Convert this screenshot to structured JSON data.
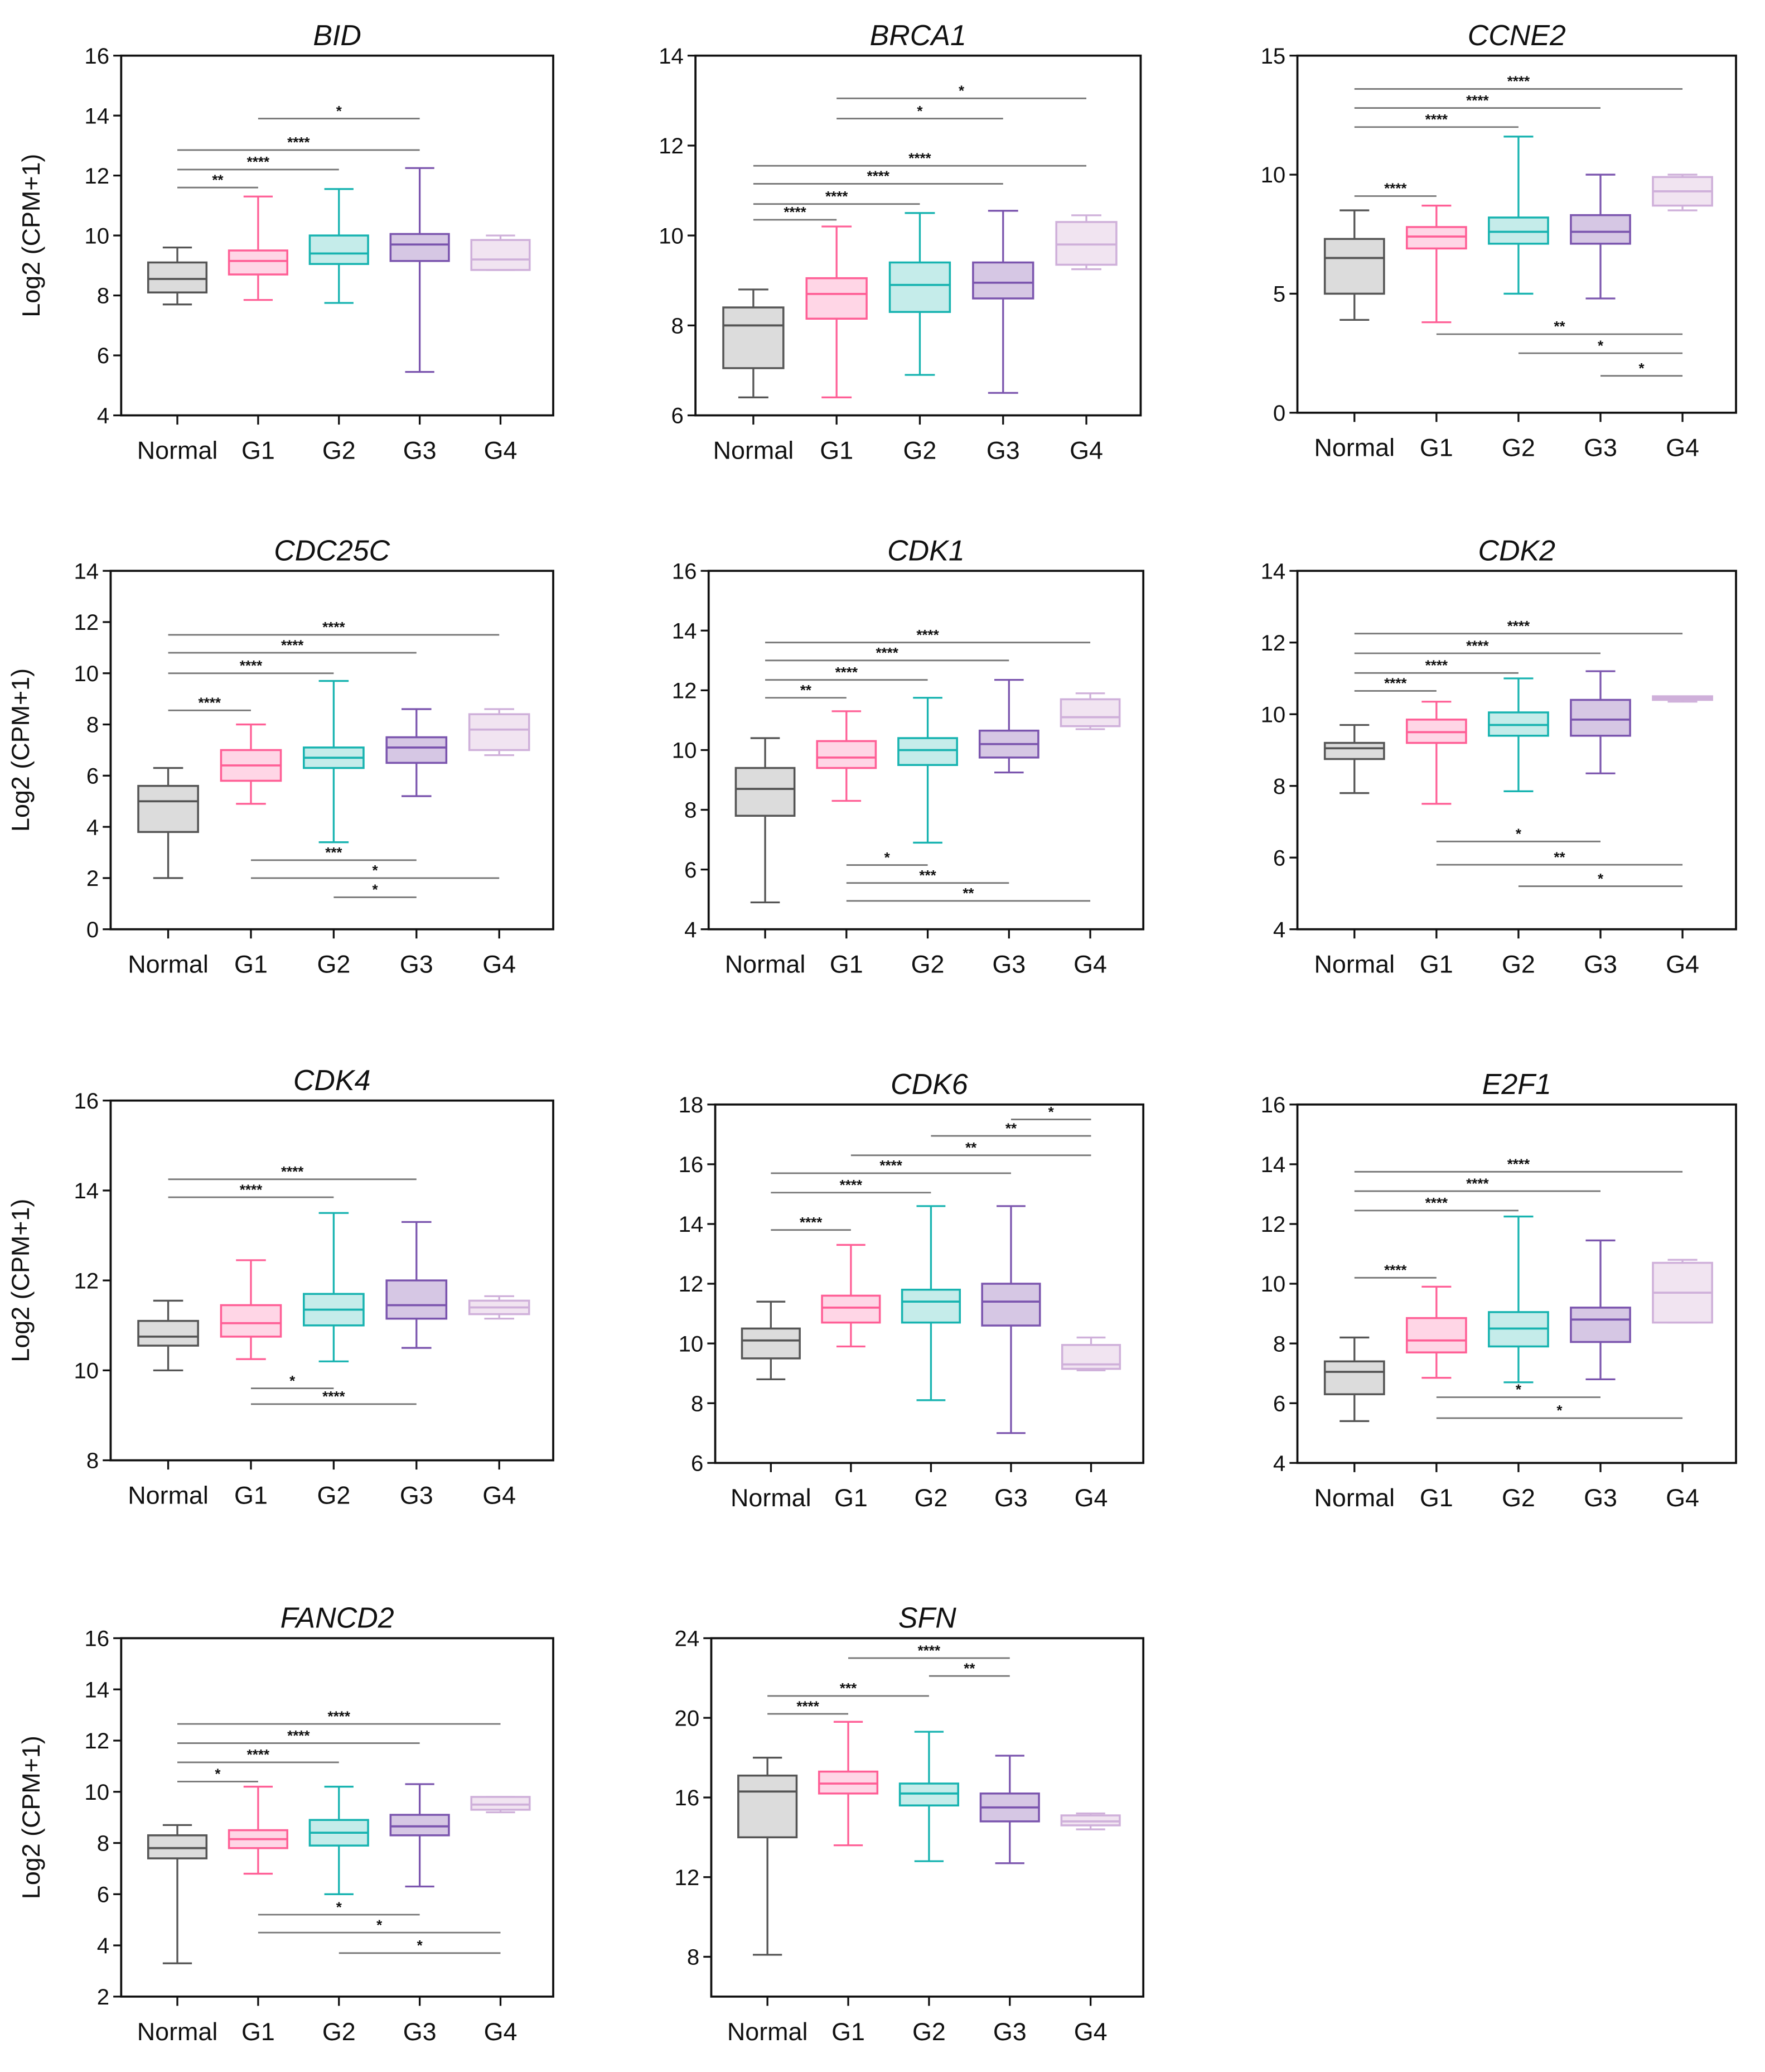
{
  "colors": {
    "Normal": {
      "stroke": "#555555",
      "fill": "#dcdcdc"
    },
    "G1": {
      "stroke": "#ff5f96",
      "fill": "#ffd6e6"
    },
    "G2": {
      "stroke": "#17b3b0",
      "fill": "#c5ecea"
    },
    "G3": {
      "stroke": "#7b55ae",
      "fill": "#d6c7e4"
    },
    "G4": {
      "stroke": "#cfb0da",
      "fill": "#f1e4f1"
    }
  },
  "chart_data": [
    {
      "type": "box",
      "title": "BID",
      "ylabel": "Log2 (CPM+1)",
      "ylim": [
        4,
        16
      ],
      "yticks": [
        4,
        6,
        8,
        10,
        12,
        14,
        16
      ],
      "categories": [
        "Normal",
        "G1",
        "G2",
        "G3",
        "G4"
      ],
      "boxes": [
        [
          7.7,
          8.1,
          8.55,
          9.1,
          9.6
        ],
        [
          7.85,
          8.7,
          9.15,
          9.5,
          11.3
        ],
        [
          7.75,
          9.05,
          9.4,
          10.0,
          11.55
        ],
        [
          5.45,
          9.15,
          9.7,
          10.05,
          12.25
        ],
        [
          8.85,
          8.85,
          9.2,
          9.85,
          10.0
        ]
      ],
      "significance": [
        {
          "from": "Normal",
          "to": "G1",
          "label": "**",
          "y": 11.6
        },
        {
          "from": "Normal",
          "to": "G2",
          "label": "****",
          "y": 12.2
        },
        {
          "from": "Normal",
          "to": "G3",
          "label": "****",
          "y": 12.85
        },
        {
          "from": "G1",
          "to": "G3",
          "label": "*",
          "y": 13.9
        }
      ]
    },
    {
      "type": "box",
      "title": "BRCA1",
      "ylabel": "",
      "ylim": [
        6,
        14
      ],
      "yticks": [
        6,
        8,
        10,
        12,
        14
      ],
      "categories": [
        "Normal",
        "G1",
        "G2",
        "G3",
        "G4"
      ],
      "boxes": [
        [
          6.4,
          7.05,
          8.0,
          8.4,
          8.8
        ],
        [
          6.4,
          8.15,
          8.7,
          9.05,
          10.2
        ],
        [
          6.9,
          8.3,
          8.9,
          9.4,
          10.5
        ],
        [
          6.5,
          8.6,
          8.95,
          9.4,
          10.55
        ],
        [
          9.25,
          9.35,
          9.8,
          10.3,
          10.45
        ]
      ],
      "significance": [
        {
          "from": "Normal",
          "to": "G1",
          "label": "****",
          "y": 10.35
        },
        {
          "from": "Normal",
          "to": "G2",
          "label": "****",
          "y": 10.7
        },
        {
          "from": "Normal",
          "to": "G3",
          "label": "****",
          "y": 11.15
        },
        {
          "from": "Normal",
          "to": "G4",
          "label": "****",
          "y": 11.55
        },
        {
          "from": "G1",
          "to": "G3",
          "label": "*",
          "y": 12.6
        },
        {
          "from": "G1",
          "to": "G4",
          "label": "*",
          "y": 13.05
        }
      ]
    },
    {
      "type": "box",
      "title": "CCNE2",
      "ylabel": "",
      "ylim": [
        0,
        15
      ],
      "yticks": [
        0,
        5,
        10,
        15
      ],
      "categories": [
        "Normal",
        "G1",
        "G2",
        "G3",
        "G4"
      ],
      "boxes": [
        [
          3.9,
          5.0,
          6.5,
          7.3,
          8.5
        ],
        [
          3.8,
          6.9,
          7.4,
          7.8,
          8.7
        ],
        [
          5.0,
          7.1,
          7.6,
          8.2,
          11.6
        ],
        [
          4.8,
          7.1,
          7.6,
          8.3,
          10.0
        ],
        [
          8.5,
          8.7,
          9.3,
          9.9,
          10.0
        ]
      ],
      "significance": [
        {
          "from": "Normal",
          "to": "G1",
          "label": "****",
          "y": 9.1
        },
        {
          "from": "Normal",
          "to": "G2",
          "label": "****",
          "y": 12.0
        },
        {
          "from": "Normal",
          "to": "G3",
          "label": "****",
          "y": 12.8
        },
        {
          "from": "Normal",
          "to": "G4",
          "label": "****",
          "y": 13.6
        },
        {
          "from": "G1",
          "to": "G4",
          "label": "**",
          "y": 3.3
        },
        {
          "from": "G2",
          "to": "G4",
          "label": "*",
          "y": 2.5
        },
        {
          "from": "G3",
          "to": "G4",
          "label": "*",
          "y": 1.55
        }
      ]
    },
    {
      "type": "box",
      "title": "CDC25C",
      "ylabel": "Log2 (CPM+1)",
      "ylim": [
        0,
        14
      ],
      "yticks": [
        0,
        2,
        4,
        6,
        8,
        10,
        12,
        14
      ],
      "categories": [
        "Normal",
        "G1",
        "G2",
        "G3",
        "G4"
      ],
      "boxes": [
        [
          2.0,
          3.8,
          5.0,
          5.6,
          6.3
        ],
        [
          4.9,
          5.8,
          6.4,
          7.0,
          8.0
        ],
        [
          3.4,
          6.3,
          6.7,
          7.1,
          9.7
        ],
        [
          5.2,
          6.5,
          7.1,
          7.5,
          8.6
        ],
        [
          6.8,
          7.0,
          7.8,
          8.4,
          8.6
        ]
      ],
      "significance": [
        {
          "from": "Normal",
          "to": "G1",
          "label": "****",
          "y": 8.55
        },
        {
          "from": "Normal",
          "to": "G2",
          "label": "****",
          "y": 10.0
        },
        {
          "from": "Normal",
          "to": "G3",
          "label": "****",
          "y": 10.8
        },
        {
          "from": "Normal",
          "to": "G4",
          "label": "****",
          "y": 11.5
        },
        {
          "from": "G1",
          "to": "G3",
          "label": "***",
          "y": 2.7
        },
        {
          "from": "G1",
          "to": "G4",
          "label": "*",
          "y": 2.0
        },
        {
          "from": "G2",
          "to": "G3",
          "label": "*",
          "y": 1.25
        }
      ]
    },
    {
      "type": "box",
      "title": "CDK1",
      "ylabel": "",
      "ylim": [
        4,
        16
      ],
      "yticks": [
        4,
        6,
        8,
        10,
        12,
        14,
        16
      ],
      "categories": [
        "Normal",
        "G1",
        "G2",
        "G3",
        "G4"
      ],
      "boxes": [
        [
          4.9,
          7.8,
          8.7,
          9.4,
          10.4
        ],
        [
          8.3,
          9.4,
          9.75,
          10.3,
          11.3
        ],
        [
          6.9,
          9.5,
          10.0,
          10.4,
          11.75
        ],
        [
          9.25,
          9.75,
          10.2,
          10.65,
          12.35
        ],
        [
          10.7,
          10.8,
          11.1,
          11.7,
          11.9
        ]
      ],
      "significance": [
        {
          "from": "Normal",
          "to": "G1",
          "label": "**",
          "y": 11.75
        },
        {
          "from": "Normal",
          "to": "G2",
          "label": "****",
          "y": 12.35
        },
        {
          "from": "Normal",
          "to": "G3",
          "label": "****",
          "y": 13.0
        },
        {
          "from": "Normal",
          "to": "G4",
          "label": "****",
          "y": 13.6
        },
        {
          "from": "G1",
          "to": "G2",
          "label": "*",
          "y": 6.15
        },
        {
          "from": "G1",
          "to": "G3",
          "label": "***",
          "y": 5.55
        },
        {
          "from": "G1",
          "to": "G4",
          "label": "**",
          "y": 4.95
        }
      ]
    },
    {
      "type": "box",
      "title": "CDK2",
      "ylabel": "",
      "ylim": [
        4,
        14
      ],
      "yticks": [
        4,
        6,
        8,
        10,
        12,
        14
      ],
      "categories": [
        "Normal",
        "G1",
        "G2",
        "G3",
        "G4"
      ],
      "boxes": [
        [
          7.8,
          8.75,
          9.05,
          9.2,
          9.7
        ],
        [
          7.5,
          9.2,
          9.5,
          9.85,
          10.35
        ],
        [
          7.85,
          9.4,
          9.7,
          10.05,
          11.0
        ],
        [
          8.35,
          9.4,
          9.85,
          10.4,
          11.2
        ],
        [
          10.35,
          10.4,
          10.45,
          10.5,
          10.5
        ]
      ],
      "significance": [
        {
          "from": "Normal",
          "to": "G1",
          "label": "****",
          "y": 10.65
        },
        {
          "from": "Normal",
          "to": "G2",
          "label": "****",
          "y": 11.15
        },
        {
          "from": "Normal",
          "to": "G3",
          "label": "****",
          "y": 11.7
        },
        {
          "from": "Normal",
          "to": "G4",
          "label": "****",
          "y": 12.25
        },
        {
          "from": "G1",
          "to": "G3",
          "label": "*",
          "y": 6.45
        },
        {
          "from": "G1",
          "to": "G4",
          "label": "**",
          "y": 5.8
        },
        {
          "from": "G2",
          "to": "G4",
          "label": "*",
          "y": 5.2
        }
      ]
    },
    {
      "type": "box",
      "title": "CDK4",
      "ylabel": "Log2 (CPM+1)",
      "ylim": [
        8,
        16
      ],
      "yticks": [
        8,
        10,
        12,
        14,
        16
      ],
      "categories": [
        "Normal",
        "G1",
        "G2",
        "G3",
        "G4"
      ],
      "boxes": [
        [
          10.0,
          10.55,
          10.75,
          11.1,
          11.55
        ],
        [
          10.25,
          10.75,
          11.05,
          11.45,
          12.45
        ],
        [
          10.2,
          11.0,
          11.35,
          11.7,
          13.5
        ],
        [
          10.5,
          11.15,
          11.45,
          12.0,
          13.3
        ],
        [
          11.15,
          11.25,
          11.4,
          11.55,
          11.65
        ]
      ],
      "significance": [
        {
          "from": "Normal",
          "to": "G2",
          "label": "****",
          "y": 13.85
        },
        {
          "from": "Normal",
          "to": "G3",
          "label": "****",
          "y": 14.25
        },
        {
          "from": "G1",
          "to": "G2",
          "label": "*",
          "y": 9.6
        },
        {
          "from": "G1",
          "to": "G3",
          "label": "****",
          "y": 9.25
        }
      ]
    },
    {
      "type": "box",
      "title": "CDK6",
      "ylabel": "",
      "ylim": [
        6,
        18
      ],
      "yticks": [
        6,
        8,
        10,
        12,
        14,
        16,
        18
      ],
      "categories": [
        "Normal",
        "G1",
        "G2",
        "G3",
        "G4"
      ],
      "boxes": [
        [
          8.8,
          9.5,
          10.1,
          10.5,
          11.4
        ],
        [
          9.9,
          10.7,
          11.2,
          11.6,
          13.3
        ],
        [
          8.1,
          10.7,
          11.4,
          11.8,
          14.6
        ],
        [
          7.0,
          10.6,
          11.4,
          12.0,
          14.6
        ],
        [
          9.1,
          9.15,
          9.3,
          9.95,
          10.2
        ]
      ],
      "significance": [
        {
          "from": "Normal",
          "to": "G1",
          "label": "****",
          "y": 13.8
        },
        {
          "from": "Normal",
          "to": "G2",
          "label": "****",
          "y": 15.05
        },
        {
          "from": "Normal",
          "to": "G3",
          "label": "****",
          "y": 15.7
        },
        {
          "from": "G1",
          "to": "G4",
          "label": "**",
          "y": 16.3
        },
        {
          "from": "G2",
          "to": "G4",
          "label": "**",
          "y": 16.95
        },
        {
          "from": "G3",
          "to": "G4",
          "label": "*",
          "y": 17.5
        }
      ]
    },
    {
      "type": "box",
      "title": "E2F1",
      "ylabel": "",
      "ylim": [
        4,
        16
      ],
      "yticks": [
        4,
        6,
        8,
        10,
        12,
        14,
        16
      ],
      "categories": [
        "Normal",
        "G1",
        "G2",
        "G3",
        "G4"
      ],
      "boxes": [
        [
          5.4,
          6.3,
          7.05,
          7.4,
          8.2
        ],
        [
          6.85,
          7.7,
          8.1,
          8.85,
          9.9
        ],
        [
          6.7,
          7.9,
          8.5,
          9.05,
          12.25
        ],
        [
          6.8,
          8.05,
          8.8,
          9.2,
          11.45
        ],
        [
          8.7,
          8.7,
          9.7,
          10.7,
          10.8
        ]
      ],
      "significance": [
        {
          "from": "Normal",
          "to": "G1",
          "label": "****",
          "y": 10.2
        },
        {
          "from": "Normal",
          "to": "G2",
          "label": "****",
          "y": 12.45
        },
        {
          "from": "Normal",
          "to": "G3",
          "label": "****",
          "y": 13.1
        },
        {
          "from": "Normal",
          "to": "G4",
          "label": "****",
          "y": 13.75
        },
        {
          "from": "G1",
          "to": "G3",
          "label": "*",
          "y": 6.2
        },
        {
          "from": "G1",
          "to": "G4",
          "label": "*",
          "y": 5.5
        }
      ]
    },
    {
      "type": "box",
      "title": "FANCD2",
      "ylabel": "Log2 (CPM+1)",
      "ylim": [
        2,
        16
      ],
      "yticks": [
        2,
        4,
        6,
        8,
        10,
        12,
        14,
        16
      ],
      "categories": [
        "Normal",
        "G1",
        "G2",
        "G3",
        "G4"
      ],
      "boxes": [
        [
          3.3,
          7.4,
          7.8,
          8.3,
          8.7
        ],
        [
          6.8,
          7.8,
          8.15,
          8.5,
          10.2
        ],
        [
          6.0,
          7.9,
          8.4,
          8.9,
          10.2
        ],
        [
          6.3,
          8.3,
          8.65,
          9.1,
          10.3
        ],
        [
          9.2,
          9.3,
          9.5,
          9.8,
          9.8
        ]
      ],
      "significance": [
        {
          "from": "Normal",
          "to": "G1",
          "label": "*",
          "y": 10.4
        },
        {
          "from": "Normal",
          "to": "G2",
          "label": "****",
          "y": 11.15
        },
        {
          "from": "Normal",
          "to": "G3",
          "label": "****",
          "y": 11.9
        },
        {
          "from": "Normal",
          "to": "G4",
          "label": "****",
          "y": 12.65
        },
        {
          "from": "G1",
          "to": "G3",
          "label": "*",
          "y": 5.2
        },
        {
          "from": "G1",
          "to": "G4",
          "label": "*",
          "y": 4.5
        },
        {
          "from": "G2",
          "to": "G4",
          "label": "*",
          "y": 3.7
        }
      ]
    },
    {
      "type": "box",
      "title": "SFN",
      "ylabel": "",
      "ylim": [
        6,
        24
      ],
      "yticks": [
        8,
        12,
        16,
        20,
        24
      ],
      "categories": [
        "Normal",
        "G1",
        "G2",
        "G3",
        "G4"
      ],
      "boxes": [
        [
          8.1,
          14.0,
          16.3,
          17.1,
          18.0
        ],
        [
          13.6,
          16.2,
          16.7,
          17.3,
          19.8
        ],
        [
          12.8,
          15.6,
          16.2,
          16.7,
          19.3
        ],
        [
          12.7,
          14.8,
          15.5,
          16.2,
          18.1
        ],
        [
          14.4,
          14.6,
          14.8,
          15.1,
          15.2
        ]
      ],
      "significance": [
        {
          "from": "Normal",
          "to": "G1",
          "label": "****",
          "y": 20.2
        },
        {
          "from": "Normal",
          "to": "G2",
          "label": "***",
          "y": 21.1
        },
        {
          "from": "G1",
          "to": "G3",
          "label": "****",
          "y": 23.0
        },
        {
          "from": "G2",
          "to": "G3",
          "label": "**",
          "y": 22.1
        }
      ]
    }
  ]
}
